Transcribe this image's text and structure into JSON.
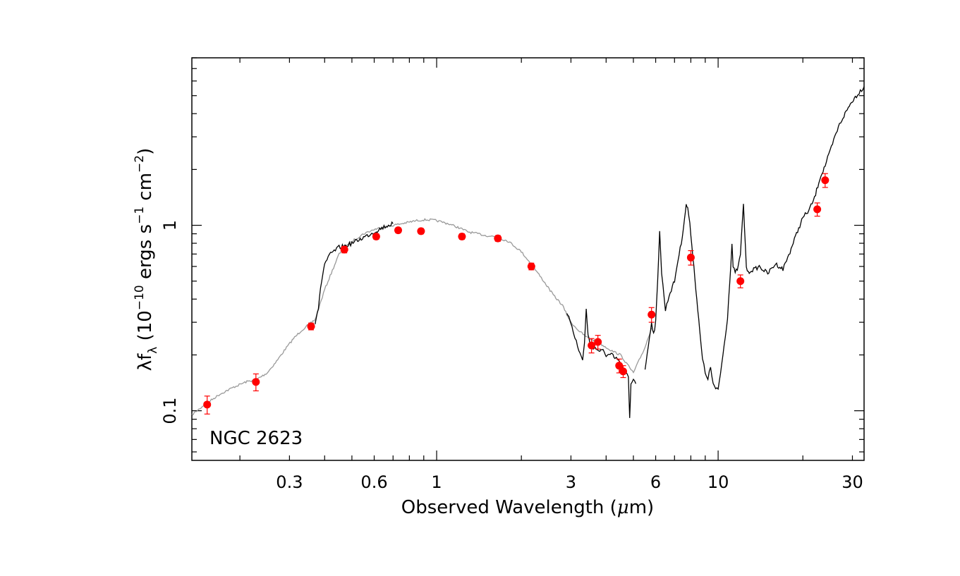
{
  "chart_data": {
    "type": "line",
    "title": "",
    "annotation": "NGC 2623",
    "xlabel": "Observed Wavelength (μm)",
    "xlabel_parts": {
      "pre": "Observed Wavelength (",
      "mu": "μ",
      "post": "m)"
    },
    "ylabel": "λf_λ (10^-10 ergs s^-1 cm^-2)",
    "ylabel_parts": {
      "lambda_f": "λf",
      "sub": "λ",
      "open": " (10",
      "exp1": "−10",
      "mid1": " ergs s",
      "exp2": "−1",
      "mid2": " cm",
      "exp3": "−2",
      "close": ")"
    },
    "x_scale": "log",
    "y_scale": "log",
    "xlim": [
      0.135,
      33
    ],
    "ylim": [
      0.054,
      8
    ],
    "x_ticks": [
      {
        "value": 0.3,
        "label": "0.3"
      },
      {
        "value": 0.6,
        "label": "0.6"
      },
      {
        "value": 1,
        "label": "1"
      },
      {
        "value": 3,
        "label": "3"
      },
      {
        "value": 6,
        "label": "6"
      },
      {
        "value": 10,
        "label": "10"
      },
      {
        "value": 30,
        "label": "30"
      }
    ],
    "y_ticks": [
      {
        "value": 0.1,
        "label": "0.1"
      },
      {
        "value": 1,
        "label": "1"
      }
    ],
    "colors": {
      "model_gray": "#999999",
      "spectrum_black": "#000000",
      "points": "#ff0000",
      "axes": "#000000"
    },
    "series": [
      {
        "style": "model (gray)",
        "x": [
          0.135,
          0.15,
          0.17,
          0.19,
          0.21,
          0.23,
          0.25,
          0.27,
          0.29,
          0.31,
          0.33,
          0.34,
          0.35,
          0.36,
          0.37,
          0.4,
          0.45,
          0.5,
          0.55,
          0.6,
          0.65,
          0.7,
          0.75,
          0.8,
          0.85,
          0.9,
          0.95,
          1.0,
          1.1,
          1.2,
          1.3,
          1.4,
          1.5,
          1.6,
          1.8,
          2.0,
          2.2,
          2.4,
          2.6,
          2.8,
          2.9,
          3.0,
          3.2,
          3.4,
          3.6,
          3.8,
          4.0,
          4.2,
          4.5,
          5.0,
          5.5,
          5.8
        ],
        "y": [
          0.095,
          0.108,
          0.123,
          0.134,
          0.143,
          0.148,
          0.16,
          0.185,
          0.215,
          0.245,
          0.27,
          0.28,
          0.29,
          0.3,
          0.31,
          0.45,
          0.7,
          0.82,
          0.9,
          0.95,
          0.98,
          1.0,
          1.02,
          1.04,
          1.06,
          1.07,
          1.07,
          1.06,
          1.02,
          0.97,
          0.92,
          0.9,
          0.88,
          0.87,
          0.82,
          0.72,
          0.6,
          0.5,
          0.42,
          0.37,
          0.33,
          0.3,
          0.27,
          0.25,
          0.24,
          0.23,
          0.22,
          0.21,
          0.2,
          0.16,
          0.22,
          0.28
        ]
      },
      {
        "style": "observed spectrum (black)",
        "x": [
          0.37,
          0.38,
          0.39,
          0.4,
          0.42,
          0.45,
          0.48,
          0.5,
          0.55,
          0.6,
          0.65,
          0.7
        ],
        "y": [
          0.3,
          0.36,
          0.5,
          0.62,
          0.7,
          0.76,
          0.78,
          0.8,
          0.86,
          0.92,
          0.98,
          1.02
        ]
      },
      {
        "style": "observed spectrum (black)",
        "x": [
          2.9,
          3.0,
          3.1,
          3.2,
          3.3,
          3.35,
          3.4,
          3.45,
          3.5,
          3.6,
          3.7,
          3.8,
          3.9,
          4.0,
          4.1,
          4.2,
          4.3,
          4.4,
          4.5,
          4.6,
          4.7,
          4.8,
          4.85,
          4.9,
          5.0,
          5.1
        ],
        "y": [
          0.33,
          0.3,
          0.25,
          0.21,
          0.19,
          0.23,
          0.35,
          0.26,
          0.23,
          0.22,
          0.215,
          0.21,
          0.21,
          0.2,
          0.2,
          0.2,
          0.19,
          0.19,
          0.18,
          0.17,
          0.16,
          0.15,
          0.09,
          0.14,
          0.15,
          0.14
        ]
      },
      {
        "style": "observed spectrum (black)",
        "x": [
          5.5,
          5.6,
          5.7,
          5.8,
          5.9,
          6.0,
          6.1,
          6.2,
          6.3,
          6.5,
          6.7,
          7.0,
          7.2,
          7.4,
          7.6,
          7.7,
          7.8,
          8.0,
          8.2,
          8.4,
          8.6,
          8.8,
          9.0,
          9.2,
          9.4,
          9.6,
          9.8,
          10.0,
          10.2,
          10.4,
          10.6,
          10.8,
          11.0,
          11.2,
          11.3,
          11.5,
          11.8,
          12.0,
          12.3,
          12.6,
          12.8,
          13.0,
          13.5,
          14.0,
          15.0,
          16.0,
          17.0,
          18.0,
          19.0,
          20.0,
          21.0,
          22.0,
          23.0,
          24.0,
          25.0,
          26.0,
          27.0,
          28.0,
          29.0,
          30.0,
          31.0,
          32.0,
          33.0
        ],
        "y": [
          0.17,
          0.2,
          0.25,
          0.3,
          0.26,
          0.3,
          0.5,
          0.95,
          0.55,
          0.35,
          0.42,
          0.5,
          0.65,
          0.8,
          1.1,
          1.28,
          1.25,
          0.9,
          0.6,
          0.4,
          0.27,
          0.19,
          0.16,
          0.15,
          0.17,
          0.14,
          0.13,
          0.13,
          0.16,
          0.2,
          0.25,
          0.32,
          0.5,
          0.8,
          0.6,
          0.55,
          0.6,
          0.7,
          1.28,
          0.6,
          0.55,
          0.57,
          0.58,
          0.6,
          0.55,
          0.62,
          0.58,
          0.72,
          0.9,
          1.1,
          1.2,
          1.4,
          1.8,
          2.1,
          2.5,
          3.0,
          3.5,
          3.9,
          4.3,
          4.7,
          5.0,
          5.3,
          5.6
        ]
      },
      {
        "style": "photometry (red)",
        "x": [
          0.153,
          0.228,
          0.358,
          0.47,
          0.61,
          0.73,
          0.88,
          1.23,
          1.65,
          2.17,
          3.55,
          3.74,
          4.45,
          4.6,
          5.8,
          8.0,
          12.0,
          22.5,
          24.0
        ],
        "y": [
          0.108,
          0.143,
          0.285,
          0.74,
          0.87,
          0.94,
          0.93,
          0.87,
          0.85,
          0.6,
          0.225,
          0.235,
          0.175,
          0.163,
          0.33,
          0.67,
          0.5,
          1.22,
          1.75
        ],
        "yerr": [
          0.012,
          0.015,
          0.012,
          0.03,
          0.03,
          0.03,
          0.03,
          0.03,
          0.03,
          0.025,
          0.02,
          0.02,
          0.015,
          0.012,
          0.03,
          0.06,
          0.04,
          0.1,
          0.15
        ]
      }
    ]
  }
}
